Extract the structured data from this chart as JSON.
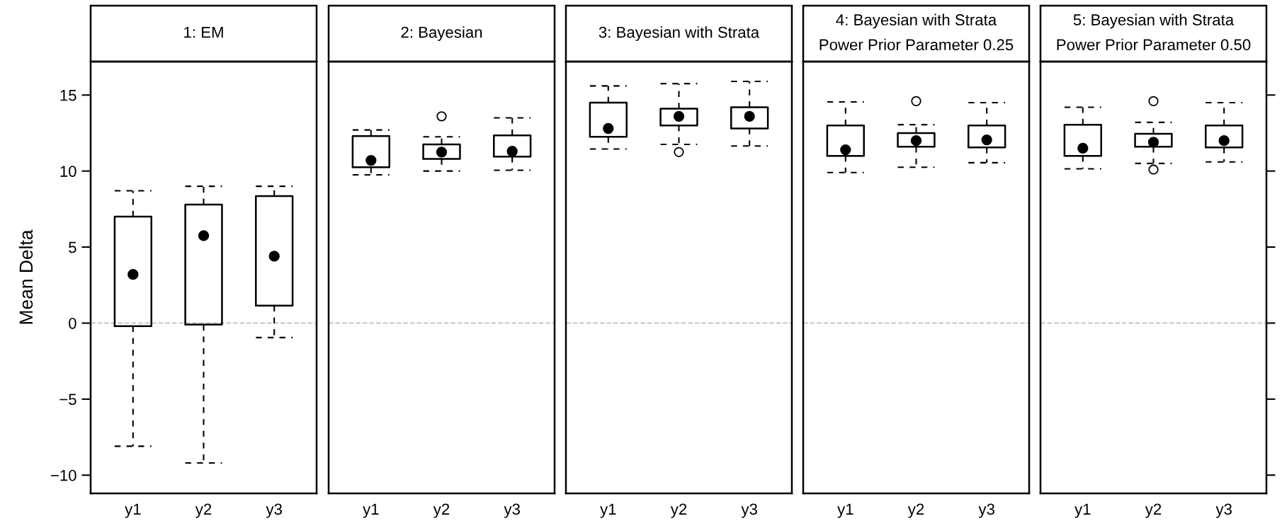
{
  "chart_data": [
    {
      "type": "box",
      "title": "1: EM",
      "ylabel": "Mean Delta",
      "categories": [
        "y1",
        "y2",
        "y3"
      ],
      "ylim": [
        -11.2,
        17.2
      ],
      "yticks": [
        -10,
        -5,
        0,
        5,
        10,
        15
      ],
      "grid": false,
      "ref_lines": [
        {
          "axis": "y",
          "value": 0,
          "color": "#bebebe",
          "line_style": "dashed"
        }
      ],
      "boxes": [
        {
          "low": -8.1,
          "q1": -0.2,
          "median": 3.2,
          "q3": 7.0,
          "high": 8.7
        },
        {
          "low": -9.2,
          "q1": -0.1,
          "median": 5.75,
          "q3": 7.8,
          "high": 9.0
        },
        {
          "low": -0.95,
          "q1": 1.15,
          "median": 4.4,
          "q3": 8.35,
          "high": 9.0
        }
      ]
    },
    {
      "type": "box",
      "title": "2: Bayesian",
      "categories": [
        "y1",
        "y2",
        "y3"
      ],
      "ylim": [
        -11.2,
        17.2
      ],
      "tick_labels": "x",
      "grid": false,
      "ref_lines": [
        {
          "axis": "y",
          "value": 0,
          "color": "#bebebe",
          "line_style": "dashed"
        }
      ],
      "boxes": [
        {
          "low": 9.75,
          "q1": 10.25,
          "median": 10.7,
          "q3": 12.3,
          "high": 12.7
        },
        {
          "low": 10.0,
          "q1": 10.8,
          "median": 11.25,
          "q3": 11.75,
          "high": 12.25,
          "outliers": [
            13.6
          ]
        },
        {
          "low": 10.05,
          "q1": 10.95,
          "median": 11.3,
          "q3": 12.35,
          "high": 13.5
        }
      ]
    },
    {
      "type": "box",
      "title": "3: Bayesian with Strata",
      "categories": [
        "y1",
        "y2",
        "y3"
      ],
      "ylim": [
        -11.2,
        17.2
      ],
      "tick_labels": "x",
      "grid": false,
      "ref_lines": [
        {
          "axis": "y",
          "value": 0,
          "color": "#bebebe",
          "line_style": "dashed"
        }
      ],
      "boxes": [
        {
          "low": 11.45,
          "q1": 12.25,
          "median": 12.8,
          "q3": 14.5,
          "high": 15.6
        },
        {
          "low": 11.75,
          "q1": 13.0,
          "median": 13.6,
          "q3": 14.1,
          "high": 15.75,
          "outliers": [
            11.25
          ]
        },
        {
          "low": 11.65,
          "q1": 12.8,
          "median": 13.6,
          "q3": 14.2,
          "high": 15.9
        }
      ]
    },
    {
      "type": "box",
      "title": "4: Bayesian with Strata\nPower Prior Parameter 0.25",
      "categories": [
        "y1",
        "y2",
        "y3"
      ],
      "ylim": [
        -11.2,
        17.2
      ],
      "tick_labels": "x",
      "grid": false,
      "ref_lines": [
        {
          "axis": "y",
          "value": 0,
          "color": "#bebebe",
          "line_style": "dashed"
        }
      ],
      "boxes": [
        {
          "low": 9.9,
          "q1": 11.0,
          "median": 11.4,
          "q3": 13.0,
          "high": 14.55
        },
        {
          "low": 10.25,
          "q1": 11.6,
          "median": 12.0,
          "q3": 12.5,
          "high": 13.05,
          "outliers": [
            14.6
          ]
        },
        {
          "low": 10.55,
          "q1": 11.55,
          "median": 12.05,
          "q3": 13.0,
          "high": 14.5
        }
      ]
    },
    {
      "type": "box",
      "title": "5: Bayesian with Strata\nPower Prior Parameter 0.50",
      "categories": [
        "y1",
        "y2",
        "y3"
      ],
      "ylim": [
        -11.2,
        17.2
      ],
      "yticks": [
        {
          "value": -10,
          "label": null
        },
        {
          "value": -5,
          "label": null
        },
        {
          "value": 0,
          "label": null
        },
        {
          "value": 5,
          "label": null
        },
        {
          "value": 10,
          "label": null
        },
        {
          "value": 15,
          "label": null
        }
      ],
      "tick_labels": "x",
      "grid": false,
      "ref_lines": [
        {
          "axis": "y",
          "value": 0,
          "color": "#bebebe",
          "line_style": "dashed"
        }
      ],
      "boxes": [
        {
          "low": 10.15,
          "q1": 11.0,
          "median": 11.5,
          "q3": 13.05,
          "high": 14.2
        },
        {
          "low": 10.5,
          "q1": 11.6,
          "median": 11.9,
          "q3": 12.45,
          "high": 13.2,
          "outliers": [
            14.6,
            10.1
          ]
        },
        {
          "low": 10.6,
          "q1": 11.55,
          "median": 12.0,
          "q3": 13.0,
          "high": 14.5
        }
      ]
    }
  ]
}
